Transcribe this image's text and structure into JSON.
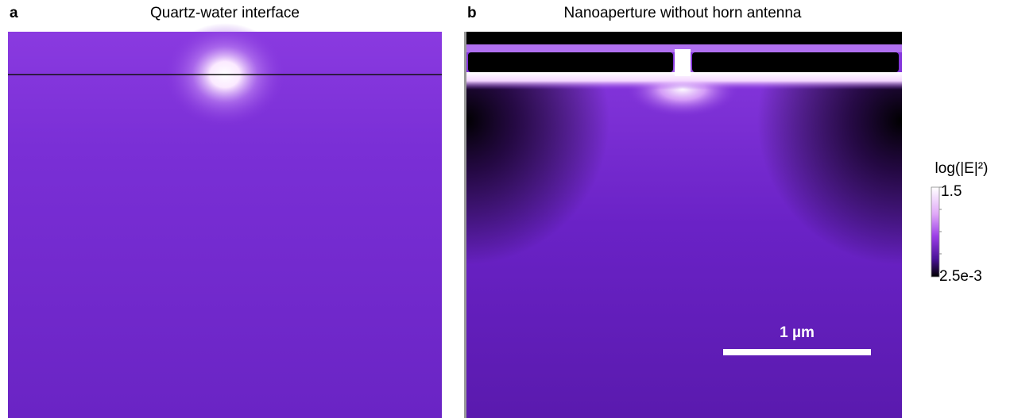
{
  "panels": [
    {
      "label": "a",
      "title": "Quartz-water interface"
    },
    {
      "label": "b",
      "title": "Nanoaperture without horn antenna"
    }
  ],
  "colorbar": {
    "title": "log(|E|²)",
    "max_label": "1.5",
    "min_label": "2.5e-3"
  },
  "scale_bar": {
    "label": "1 µm"
  }
}
